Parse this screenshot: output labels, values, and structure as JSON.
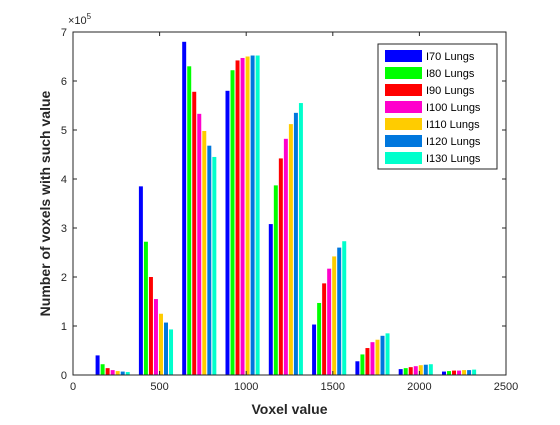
{
  "chart_data": {
    "type": "bar",
    "title": "",
    "xlabel": "Voxel value",
    "ylabel": "Number of voxels with such value",
    "y_exponent_label": "× 10^5",
    "xlim": [
      0,
      2500
    ],
    "ylim": [
      0,
      7
    ],
    "y_scale_factor": 100000,
    "xticks": [
      0,
      500,
      1000,
      1500,
      2000,
      2500
    ],
    "yticks": [
      0,
      1,
      2,
      3,
      4,
      5,
      6,
      7
    ],
    "grid": false,
    "legend_position": "top-right",
    "bin_centers": [
      250,
      500,
      750,
      1000,
      1250,
      1500,
      1750,
      2000,
      2250
    ],
    "series": [
      {
        "name": "I70 Lungs",
        "color": "#0000ff",
        "offset": -108,
        "values": [
          0.4,
          3.85,
          6.8,
          5.8,
          3.08,
          1.03,
          0.28,
          0.12,
          0.07
        ]
      },
      {
        "name": "I80 Lungs",
        "color": "#00ff00",
        "offset": -79,
        "values": [
          0.22,
          2.72,
          6.3,
          6.22,
          3.87,
          1.47,
          0.42,
          0.14,
          0.08
        ]
      },
      {
        "name": "I90 Lungs",
        "color": "#ff0000",
        "offset": -50,
        "values": [
          0.14,
          2.0,
          5.78,
          6.42,
          4.42,
          1.87,
          0.55,
          0.16,
          0.09
        ]
      },
      {
        "name": "I100 Lungs",
        "color": "#ff00cc",
        "offset": -21,
        "values": [
          0.1,
          1.55,
          5.33,
          6.47,
          4.82,
          2.17,
          0.67,
          0.18,
          0.09
        ]
      },
      {
        "name": "I110 Lungs",
        "color": "#ffcc00",
        "offset": 8,
        "values": [
          0.08,
          1.25,
          4.98,
          6.5,
          5.12,
          2.42,
          0.72,
          0.2,
          0.1
        ]
      },
      {
        "name": "I120 Lungs",
        "color": "#0077dd",
        "offset": 37,
        "values": [
          0.07,
          1.07,
          4.68,
          6.52,
          5.35,
          2.6,
          0.8,
          0.21,
          0.1
        ]
      },
      {
        "name": "I130 Lungs",
        "color": "#00ffcc",
        "offset": 66,
        "values": [
          0.06,
          0.93,
          4.45,
          6.52,
          5.55,
          2.73,
          0.85,
          0.22,
          0.11
        ]
      }
    ]
  }
}
